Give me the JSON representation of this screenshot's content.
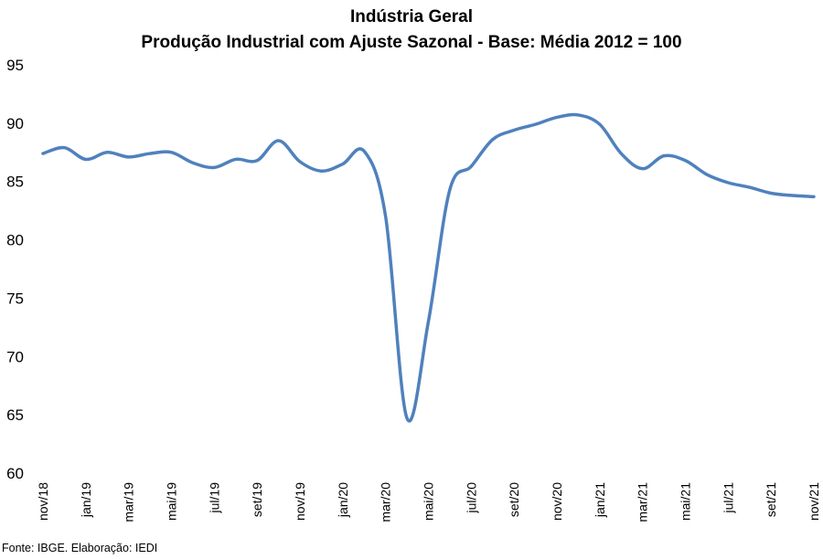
{
  "chart_data": {
    "type": "line",
    "title": "Indústria Geral",
    "subtitle": "Produção Industrial com Ajuste Sazonal - Base: Média 2012 = 100",
    "xlabel": "",
    "ylabel": "",
    "ylim": [
      60,
      95
    ],
    "yticks": [
      60,
      65,
      70,
      75,
      80,
      85,
      90,
      95
    ],
    "grid": false,
    "legend": "none",
    "line_color": "#4f81bd",
    "x": [
      "nov/18",
      "dez/18",
      "jan/19",
      "fev/19",
      "mar/19",
      "abr/19",
      "mai/19",
      "jun/19",
      "jul/19",
      "ago/19",
      "set/19",
      "out/19",
      "nov/19",
      "dez/19",
      "jan/20",
      "fev/20",
      "mar/20",
      "abr/20",
      "mai/20",
      "jun/20",
      "jul/20",
      "ago/20",
      "set/20",
      "out/20",
      "nov/20",
      "dez/20",
      "jan/21",
      "fev/21",
      "mar/21",
      "abr/21",
      "mai/21",
      "jun/21",
      "jul/21",
      "ago/21",
      "set/21",
      "out/21",
      "nov/21"
    ],
    "x_tick_labels": [
      "nov/18",
      "jan/19",
      "mar/19",
      "mai/19",
      "jul/19",
      "set/19",
      "nov/19",
      "jan/20",
      "mar/20",
      "mai/20",
      "jul/20",
      "set/20",
      "nov/20",
      "jan/21",
      "mar/21",
      "mai/21",
      "jul/21",
      "set/21",
      "nov/21"
    ],
    "series": [
      {
        "name": "",
        "values": [
          87.4,
          87.9,
          86.9,
          87.5,
          87.1,
          87.4,
          87.5,
          86.6,
          86.2,
          86.9,
          86.8,
          88.5,
          86.7,
          85.9,
          86.5,
          87.6,
          82.0,
          64.7,
          73.0,
          84.3,
          86.3,
          88.6,
          89.4,
          89.9,
          90.5,
          90.7,
          89.9,
          87.4,
          86.1,
          87.2,
          86.8,
          85.6,
          84.9,
          84.5,
          84.0,
          83.8,
          83.7
        ]
      }
    ]
  },
  "source": "Fonte: IBGE. Elaboração: IEDI"
}
